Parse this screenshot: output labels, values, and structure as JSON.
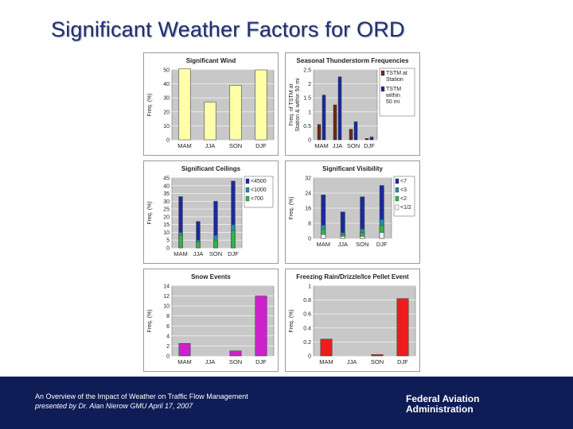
{
  "slide": {
    "title": "Significant Weather Factors for ORD"
  },
  "footer": {
    "line1": "An Overview of the Impact of Weather on Traffic Flow Management",
    "line2": "presented by Dr. Alan Nierow GMU April 17, 2007",
    "agency": "Federal Aviation Administration"
  },
  "chart_data": [
    {
      "id": "wind",
      "type": "bar",
      "title": "Significant Wind",
      "ylabel": "Freq. (%)",
      "categories": [
        "MAM",
        "JJA",
        "SON",
        "DJF"
      ],
      "ylim": [
        0,
        50
      ],
      "yticks": [
        0,
        10,
        20,
        30,
        40,
        50
      ],
      "grid": true,
      "series": [
        {
          "values": [
            51,
            27,
            39,
            50
          ],
          "color": "#ffffa8"
        }
      ]
    },
    {
      "id": "thunderstorm",
      "type": "bar",
      "title": "Seasonal Thunderstorm Frequencies",
      "ylabel": "Freq. of TSTM at Station & within 50 mi",
      "categories": [
        "MAM",
        "JJA",
        "SON",
        "DJF"
      ],
      "ylim": [
        0,
        2.5
      ],
      "yticks": [
        0,
        0.5,
        1,
        1.5,
        2,
        2.5
      ],
      "grid": true,
      "legend": "right",
      "series": [
        {
          "name": "TSTM at Station",
          "values": [
            0.55,
            1.25,
            0.38,
            0.05
          ],
          "color": "#6b2a12"
        },
        {
          "name": "TSTM within 50 mi",
          "values": [
            1.6,
            2.25,
            0.65,
            0.1
          ],
          "color": "#1c2a9c"
        }
      ]
    },
    {
      "id": "ceilings",
      "type": "bar",
      "title": "Significant Ceilings",
      "ylabel": "Freq. (%)",
      "categories": [
        "MAM",
        "JJA",
        "SON",
        "DJF"
      ],
      "ylim": [
        0,
        45
      ],
      "yticks": [
        0,
        5,
        10,
        15,
        20,
        25,
        30,
        35,
        40,
        45
      ],
      "grid": true,
      "legend": "right",
      "series": [
        {
          "name": "<4500",
          "values": [
            33,
            17,
            30,
            43
          ],
          "color": "#1c2a9c"
        },
        {
          "name": "<1000",
          "values": [
            10,
            5,
            8,
            15
          ],
          "color": "#2a8aa8"
        },
        {
          "name": "<700",
          "values": [
            8,
            4,
            5,
            11
          ],
          "color": "#2fb34a"
        }
      ]
    },
    {
      "id": "visibility",
      "type": "bar",
      "title": "Significant Visibility",
      "ylabel": "Freq. (%)",
      "categories": [
        "MAM",
        "JJA",
        "SON",
        "DJF"
      ],
      "ylim": [
        0,
        32
      ],
      "yticks": [
        0,
        8,
        16,
        24,
        32
      ],
      "grid": true,
      "legend": "right",
      "series": [
        {
          "name": "<7",
          "values": [
            23,
            14,
            22,
            28
          ],
          "color": "#1c2a9c"
        },
        {
          "name": "<3",
          "values": [
            7,
            3,
            5,
            10
          ],
          "color": "#2a8aa8"
        },
        {
          "name": "<2",
          "values": [
            5,
            2,
            3,
            7
          ],
          "color": "#2fb34a"
        },
        {
          "name": "<1/2",
          "values": [
            2,
            1,
            1,
            3
          ],
          "color": "#ffffff"
        }
      ]
    },
    {
      "id": "snow",
      "type": "bar",
      "title": "Snow Events",
      "ylabel": "Freq. (%)",
      "categories": [
        "MAM",
        "JJA",
        "SON",
        "DJF"
      ],
      "ylim": [
        0,
        14
      ],
      "yticks": [
        0,
        2,
        4,
        6,
        8,
        10,
        12,
        14
      ],
      "grid": true,
      "series": [
        {
          "values": [
            2.5,
            0,
            1,
            12
          ],
          "color": "#cc22cc"
        }
      ]
    },
    {
      "id": "freezing",
      "type": "bar",
      "title": "Freezing Rain/Drizzle/Ice Pellet Event",
      "ylabel": "Freq. (%)",
      "categories": [
        "MAM",
        "JJA",
        "SON",
        "DJF"
      ],
      "ylim": [
        0,
        1
      ],
      "yticks": [
        0,
        0.2,
        0.4,
        0.6,
        0.8,
        1
      ],
      "grid": true,
      "series": [
        {
          "values": [
            0.24,
            0,
            0.02,
            0.82
          ],
          "color": "#ee1c1c"
        }
      ]
    }
  ]
}
